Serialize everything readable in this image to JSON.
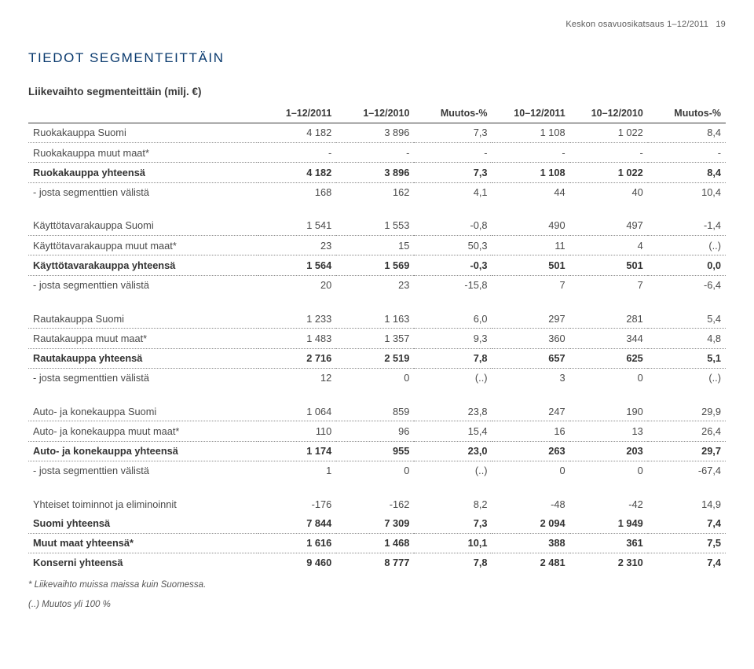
{
  "page_header": {
    "text": "Keskon osavuosikatsaus 1–12/2011",
    "page_number": "19"
  },
  "section_title": "TIEDOT SEGMENTEITTÄIN",
  "table_title": "Liikevaihto segmenteittäin (milj. €)",
  "columns": [
    "",
    "1–12/2011",
    "1–12/2010",
    "Muutos-%",
    "10–12/2011",
    "10–12/2010",
    "Muutos-%"
  ],
  "groups": [
    {
      "rows": [
        {
          "label": "Ruokakauppa Suomi",
          "vals": [
            "4 182",
            "3 896",
            "7,3",
            "1 108",
            "1 022",
            "8,4"
          ]
        },
        {
          "label": "Ruokakauppa muut maat*",
          "vals": [
            "-",
            "-",
            "-",
            "-",
            "-",
            "-"
          ]
        },
        {
          "label": "Ruokakauppa yhteensä",
          "vals": [
            "4 182",
            "3 896",
            "7,3",
            "1 108",
            "1 022",
            "8,4"
          ],
          "bold": true
        },
        {
          "label": "- josta segmenttien välistä",
          "vals": [
            "168",
            "162",
            "4,1",
            "44",
            "40",
            "10,4"
          ],
          "last": true
        }
      ]
    },
    {
      "rows": [
        {
          "label": "Käyttötavarakauppa Suomi",
          "vals": [
            "1 541",
            "1 553",
            "-0,8",
            "490",
            "497",
            "-1,4"
          ]
        },
        {
          "label": "Käyttötavarakauppa muut maat*",
          "vals": [
            "23",
            "15",
            "50,3",
            "11",
            "4",
            "(..)"
          ]
        },
        {
          "label": "Käyttötavarakauppa yhteensä",
          "vals": [
            "1 564",
            "1 569",
            "-0,3",
            "501",
            "501",
            "0,0"
          ],
          "bold": true
        },
        {
          "label": "- josta segmenttien välistä",
          "vals": [
            "20",
            "23",
            "-15,8",
            "7",
            "7",
            "-6,4"
          ],
          "last": true
        }
      ]
    },
    {
      "rows": [
        {
          "label": "Rautakauppa Suomi",
          "vals": [
            "1 233",
            "1 163",
            "6,0",
            "297",
            "281",
            "5,4"
          ]
        },
        {
          "label": "Rautakauppa muut maat*",
          "vals": [
            "1 483",
            "1 357",
            "9,3",
            "360",
            "344",
            "4,8"
          ]
        },
        {
          "label": "Rautakauppa yhteensä",
          "vals": [
            "2 716",
            "2 519",
            "7,8",
            "657",
            "625",
            "5,1"
          ],
          "bold": true
        },
        {
          "label": "- josta segmenttien välistä",
          "vals": [
            "12",
            "0",
            "(..)",
            "3",
            "0",
            "(..)"
          ],
          "last": true
        }
      ]
    },
    {
      "rows": [
        {
          "label": "Auto- ja konekauppa Suomi",
          "vals": [
            "1 064",
            "859",
            "23,8",
            "247",
            "190",
            "29,9"
          ]
        },
        {
          "label": "Auto- ja konekauppa muut maat*",
          "vals": [
            "110",
            "96",
            "15,4",
            "16",
            "13",
            "26,4"
          ]
        },
        {
          "label": "Auto- ja konekauppa yhteensä",
          "vals": [
            "1 174",
            "955",
            "23,0",
            "263",
            "203",
            "29,7"
          ],
          "bold": true
        },
        {
          "label": "- josta segmenttien välistä",
          "vals": [
            "1",
            "0",
            "(..)",
            "0",
            "0",
            "-67,4"
          ],
          "last": true
        }
      ]
    },
    {
      "rows": [
        {
          "label": "Yhteiset toiminnot ja eliminoinnit",
          "vals": [
            "-176",
            "-162",
            "8,2",
            "-48",
            "-42",
            "14,9"
          ],
          "last": true
        }
      ]
    },
    {
      "no_spacer_before": true,
      "rows": [
        {
          "label": "Suomi yhteensä",
          "vals": [
            "7 844",
            "7 309",
            "7,3",
            "2 094",
            "1 949",
            "7,4"
          ],
          "bold": true
        },
        {
          "label": "Muut maat yhteensä*",
          "vals": [
            "1 616",
            "1 468",
            "10,1",
            "388",
            "361",
            "7,5"
          ],
          "bold": true
        },
        {
          "label": "Konserni yhteensä",
          "vals": [
            "9 460",
            "8 777",
            "7,8",
            "2 481",
            "2 310",
            "7,4"
          ],
          "bold": true,
          "last": true
        }
      ]
    }
  ],
  "footnotes": [
    "* Liikevaihto muissa maissa kuin Suomessa.",
    "(..) Muutos yli 100 %"
  ]
}
